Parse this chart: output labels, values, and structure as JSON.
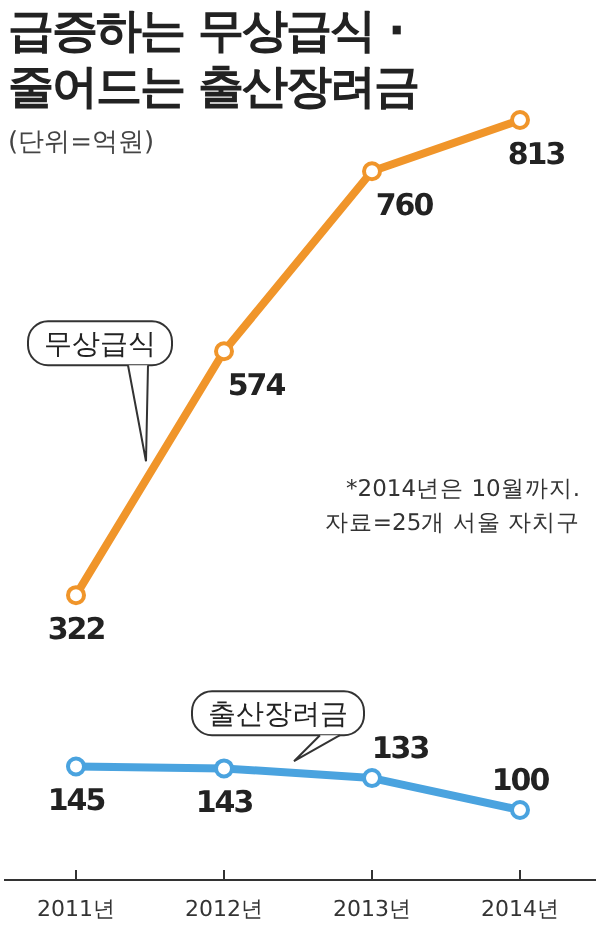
{
  "chart_data": {
    "type": "line",
    "title": "급증하는 무상급식 · 줄어드는 출산장려금",
    "subtitle": "(단위=억원)",
    "categories": [
      "2011년",
      "2012년",
      "2013년",
      "2014년"
    ],
    "series": [
      {
        "name": "무상급식",
        "color": "#f0952a",
        "values": [
          322,
          574,
          760,
          813
        ]
      },
      {
        "name": "출산장려금",
        "color": "#4aa3df",
        "values": [
          145,
          143,
          133,
          100
        ]
      }
    ],
    "annotations": [
      "*2014년은 10월까지.",
      "자료=25개 서울 자치구"
    ],
    "data_labels": true,
    "marker": "circle"
  }
}
